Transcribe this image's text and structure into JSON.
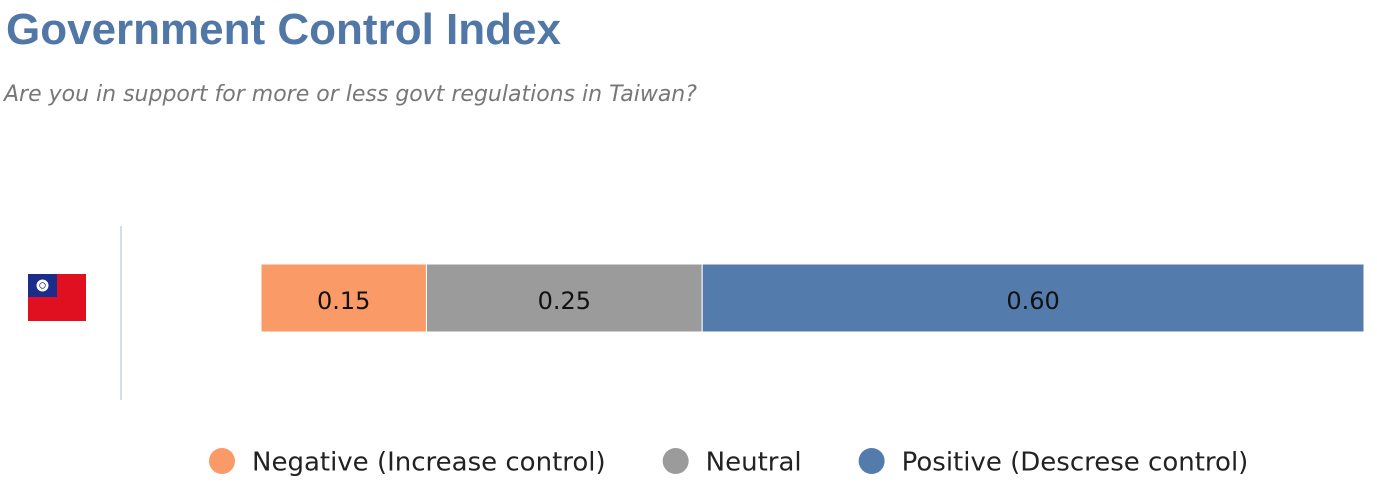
{
  "chart_data": {
    "type": "stacked-bar-horizontal",
    "title": "Government Control Index",
    "subtitle": "Are you in support for more or less govt regulations in Taiwan?",
    "categories": [
      null
    ],
    "series": [
      {
        "name": "Negative (Increase control)",
        "color": "#fa9a67",
        "values": [
          0.15
        ],
        "value_labels": [
          "0.15"
        ]
      },
      {
        "name": "Neutral",
        "color": "#9b9b9b",
        "values": [
          0.25
        ],
        "value_labels": [
          "0.25"
        ]
      },
      {
        "name": "Positive (Descrese control)",
        "color": "#537bab",
        "values": [
          0.6
        ],
        "value_labels": [
          "0.60"
        ]
      }
    ],
    "xlim": [
      0,
      1
    ],
    "legend": "bottom"
  }
}
